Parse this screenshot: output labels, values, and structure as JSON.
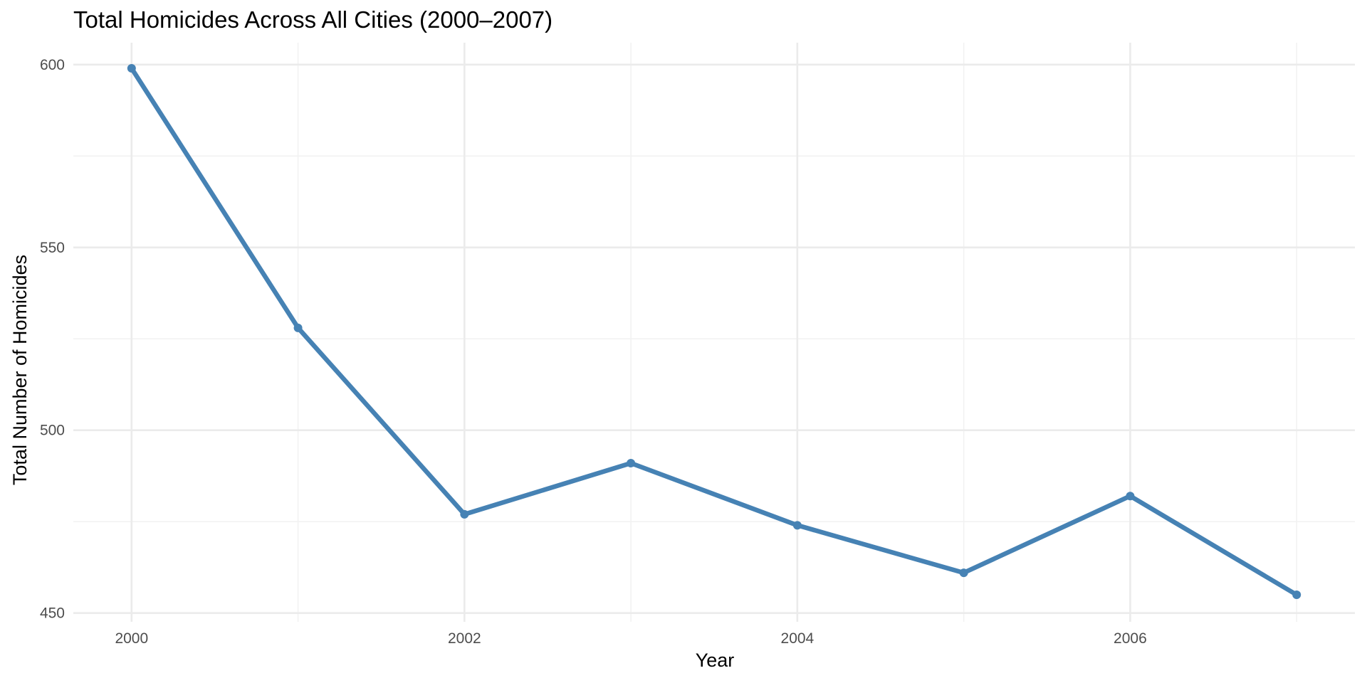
{
  "chart_data": {
    "type": "line",
    "title": "Total Homicides Across All Cities (2000–2007)",
    "xlabel": "Year",
    "ylabel": "Total Number of Homicides",
    "x": [
      2000,
      2001,
      2002,
      2003,
      2004,
      2005,
      2006,
      2007
    ],
    "series": [
      {
        "values": [
          599,
          528,
          477,
          491,
          474,
          461,
          482,
          455
        ],
        "color": "#4682b4"
      }
    ],
    "xlim": [
      1999.65,
      2007.35
    ],
    "ylim": [
      447.6,
      606.0
    ],
    "x_ticks": [
      2000,
      2002,
      2004,
      2006
    ],
    "x_tick_labels": [
      "2000",
      "2002",
      "2004",
      "2006"
    ],
    "y_ticks": [
      450,
      500,
      550,
      600
    ],
    "y_tick_labels": [
      "450",
      "500",
      "550",
      "600"
    ],
    "x_minor_ticks": [
      2001,
      2003,
      2005,
      2007
    ],
    "y_minor_ticks": [
      475,
      525,
      575
    ],
    "grid": true,
    "legend": "none"
  }
}
